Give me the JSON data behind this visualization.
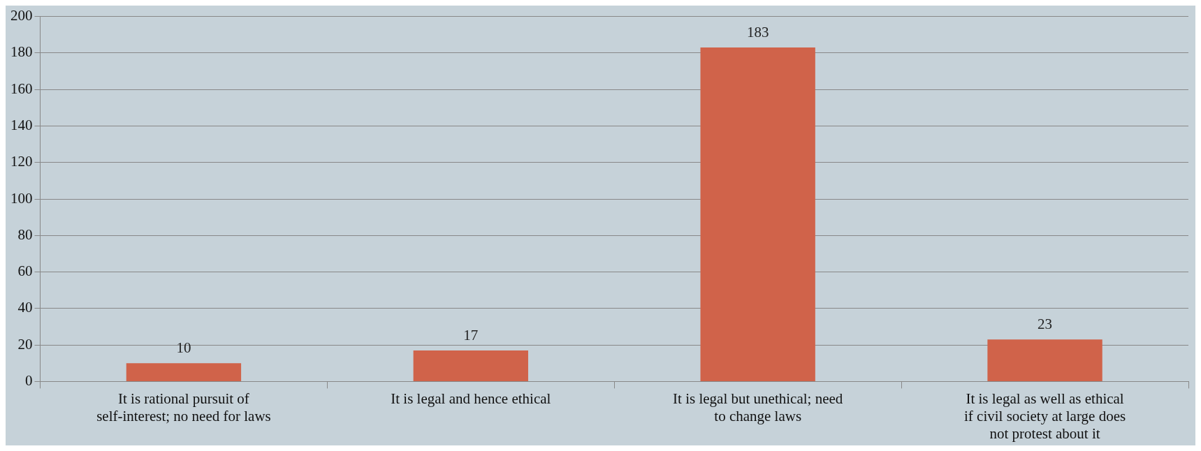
{
  "chart_data": {
    "type": "bar",
    "categories": [
      "It is rational pursuit of self-interest; no need for laws",
      "It is legal and hence ethical",
      "It is legal but unethical; need to change laws",
      "It is legal as well as ethical if civil society at large does not protest about it"
    ],
    "values": [
      10,
      17,
      183,
      23
    ],
    "color": "#d0634a",
    "ylim": [
      0,
      200
    ],
    "yticks": [
      0,
      20,
      40,
      60,
      80,
      100,
      120,
      140,
      160,
      180,
      200
    ],
    "grid": "y",
    "legend": false,
    "data_labels": true
  }
}
